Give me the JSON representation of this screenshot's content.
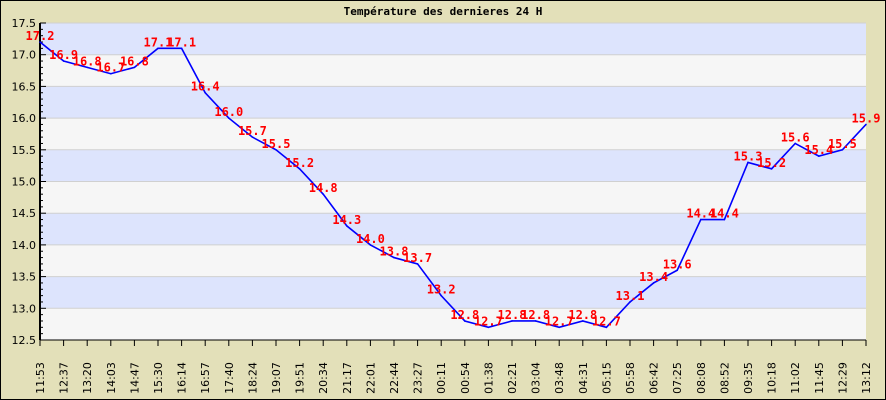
{
  "chart_data": {
    "type": "line",
    "title": "Température des dernieres 24 H",
    "xlabel": "",
    "ylabel": "",
    "ylim": [
      12.5,
      17.5
    ],
    "yticks": [
      "12.5",
      "13.0",
      "13.5",
      "14.0",
      "14.5",
      "15.0",
      "15.5",
      "16.0",
      "16.5",
      "17.0",
      "17.5"
    ],
    "grid": true,
    "x": [
      "11:53",
      "12:37",
      "13:20",
      "14:03",
      "14:47",
      "15:30",
      "16:14",
      "16:57",
      "17:40",
      "18:24",
      "19:07",
      "19:51",
      "20:34",
      "21:17",
      "22:01",
      "22:44",
      "23:27",
      "00:11",
      "00:54",
      "01:38",
      "02:21",
      "03:04",
      "03:48",
      "04:31",
      "05:15",
      "05:58",
      "06:42",
      "07:25",
      "08:08",
      "08:52",
      "09:35",
      "10:18",
      "11:02",
      "11:45",
      "12:29",
      "13:12"
    ],
    "series": [
      {
        "values": [
          17.2,
          16.9,
          16.8,
          16.7,
          16.8,
          17.1,
          17.1,
          16.4,
          16.0,
          15.7,
          15.5,
          15.2,
          14.8,
          14.3,
          14.0,
          13.8,
          13.7,
          13.2,
          12.8,
          12.7,
          12.8,
          12.8,
          12.7,
          12.8,
          12.7,
          13.1,
          13.4,
          13.6,
          14.4,
          14.4,
          15.3,
          15.2,
          15.6,
          15.4,
          15.5,
          15.9
        ],
        "color": "#0000ff"
      }
    ],
    "label_color": "#ff0000",
    "band_colors": [
      "#dde4fd",
      "#f6f6f6"
    ],
    "background": "#e3e0b9"
  }
}
